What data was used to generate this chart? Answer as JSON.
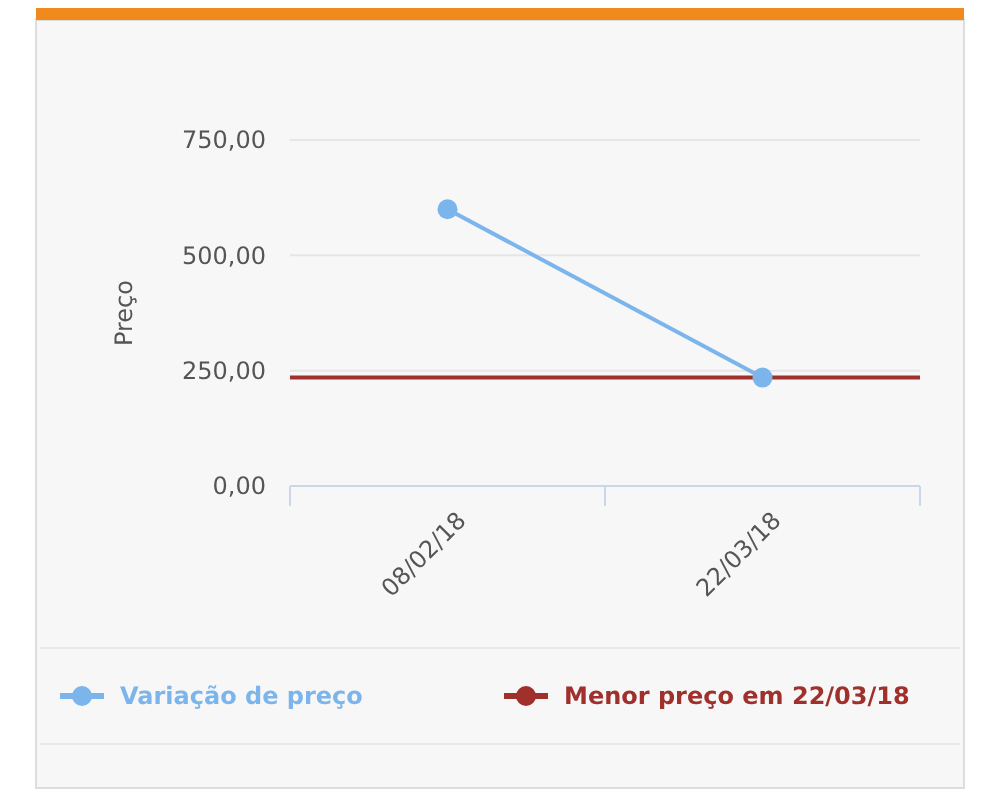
{
  "chart_data": {
    "type": "line",
    "ylabel": "Preço",
    "categories": [
      "08/02/18",
      "22/03/18"
    ],
    "series": [
      {
        "name": "Variação de preço",
        "color": "#7cb5ec",
        "values": [
          600,
          235
        ]
      }
    ],
    "ref_lines": [
      {
        "axis": "y",
        "value": 235,
        "label": "Menor preço em 22/03/18",
        "color": "#a0302c"
      }
    ],
    "ylim": [
      0,
      750
    ],
    "yticks": [
      {
        "value": 0,
        "label": "0,00"
      },
      {
        "value": 250,
        "label": "250,00"
      },
      {
        "value": 500,
        "label": "500,00"
      },
      {
        "value": 750,
        "label": "750,00"
      }
    ],
    "grid": "y",
    "legend": "bottom",
    "marker": "circle",
    "line_style": "solid"
  }
}
